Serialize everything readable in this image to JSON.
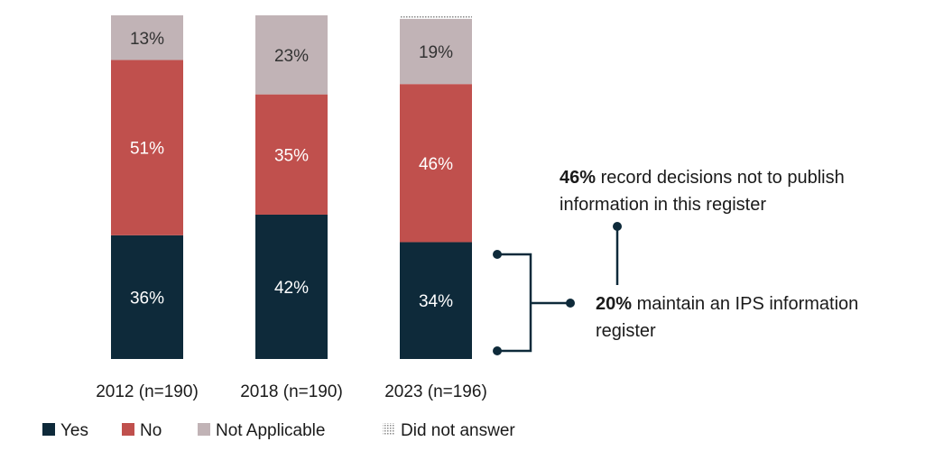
{
  "chart_data": {
    "type": "bar",
    "stacked": true,
    "categories": [
      "2012 (n=190)",
      "2018 (n=190)",
      "2023 (n=196)"
    ],
    "series": [
      {
        "name": "Yes",
        "values": [
          36,
          42,
          34
        ],
        "color": "#0e2a3a",
        "label_color": "#ffffff"
      },
      {
        "name": "No",
        "values": [
          51,
          35,
          46
        ],
        "color": "#c0504d",
        "label_color": "#ffffff"
      },
      {
        "name": "Not Applicable",
        "values": [
          13,
          23,
          19
        ],
        "color": "#c1b3b6",
        "label_color": "#333333"
      },
      {
        "name": "Did not answer",
        "values": [
          0,
          0,
          1
        ],
        "color": "#cccccc",
        "pattern": "dotted"
      }
    ],
    "value_suffix": "%",
    "ylim": [
      0,
      100
    ],
    "legend_position": "bottom-left"
  },
  "annotations": {
    "top": {
      "bold": "46%",
      "text": " record decisions not to publish information in this register"
    },
    "bottom": {
      "bold": "20%",
      "text": " maintain an IPS information register"
    }
  }
}
